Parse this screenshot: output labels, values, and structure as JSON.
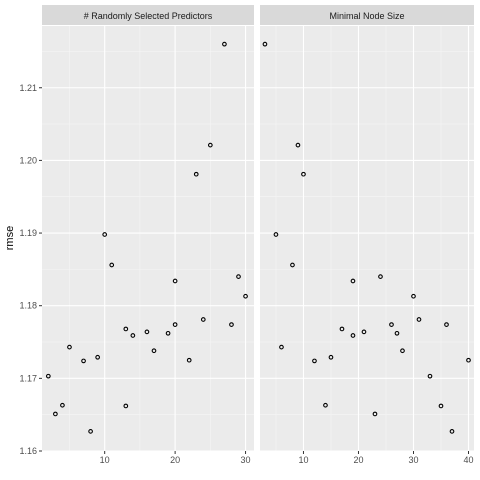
{
  "chart_data": {
    "type": "scatter",
    "ylabel": "rmse",
    "xlabel": "",
    "ylim": [
      1.16,
      1.2185
    ],
    "y_ticks": [
      1.16,
      1.17,
      1.18,
      1.19,
      1.2,
      1.21
    ],
    "y_tick_labels": [
      "1.16",
      "1.17",
      "1.18",
      "1.19",
      "1.20",
      "1.21"
    ],
    "grid": true,
    "colors": {
      "panel": "#ebebeb",
      "strip": "#d9d9d9",
      "grid_major": "#ffffff",
      "point_stroke": "#000000"
    },
    "panels": [
      {
        "strip_label": "# Randomly Selected Predictors",
        "xlim": [
          1.1,
          31.2
        ],
        "x_ticks": [
          10,
          20,
          30
        ],
        "x_tick_labels": [
          "10",
          "20",
          "30"
        ],
        "points": [
          {
            "x": 2,
            "y": 1.1703
          },
          {
            "x": 3,
            "y": 1.1651
          },
          {
            "x": 4,
            "y": 1.1663
          },
          {
            "x": 5,
            "y": 1.1743
          },
          {
            "x": 7,
            "y": 1.1724
          },
          {
            "x": 8,
            "y": 1.1627
          },
          {
            "x": 9,
            "y": 1.1729
          },
          {
            "x": 10,
            "y": 1.1898
          },
          {
            "x": 11,
            "y": 1.1856
          },
          {
            "x": 13,
            "y": 1.1768
          },
          {
            "x": 13,
            "y": 1.1662
          },
          {
            "x": 14,
            "y": 1.1759
          },
          {
            "x": 16,
            "y": 1.1764
          },
          {
            "x": 17,
            "y": 1.1738
          },
          {
            "x": 19,
            "y": 1.1762
          },
          {
            "x": 20,
            "y": 1.1834
          },
          {
            "x": 20,
            "y": 1.1774
          },
          {
            "x": 22,
            "y": 1.1725
          },
          {
            "x": 23,
            "y": 1.1981
          },
          {
            "x": 24,
            "y": 1.1781
          },
          {
            "x": 25,
            "y": 1.2021
          },
          {
            "x": 27,
            "y": 1.216
          },
          {
            "x": 28,
            "y": 1.1774
          },
          {
            "x": 29,
            "y": 1.184
          },
          {
            "x": 30,
            "y": 1.1813
          }
        ]
      },
      {
        "strip_label": "Minimal Node Size",
        "xlim": [
          2.1,
          41.0
        ],
        "x_ticks": [
          10,
          20,
          30,
          40
        ],
        "x_tick_labels": [
          "10",
          "20",
          "30",
          "40"
        ],
        "points": [
          {
            "x": 3,
            "y": 1.216
          },
          {
            "x": 5,
            "y": 1.1898
          },
          {
            "x": 6,
            "y": 1.1743
          },
          {
            "x": 8,
            "y": 1.1856
          },
          {
            "x": 9,
            "y": 1.2021
          },
          {
            "x": 10,
            "y": 1.1981
          },
          {
            "x": 12,
            "y": 1.1724
          },
          {
            "x": 14,
            "y": 1.1663
          },
          {
            "x": 15,
            "y": 1.1729
          },
          {
            "x": 17,
            "y": 1.1768
          },
          {
            "x": 19,
            "y": 1.1834
          },
          {
            "x": 19,
            "y": 1.1759
          },
          {
            "x": 21,
            "y": 1.1764
          },
          {
            "x": 23,
            "y": 1.1651
          },
          {
            "x": 24,
            "y": 1.184
          },
          {
            "x": 26,
            "y": 1.1774
          },
          {
            "x": 27,
            "y": 1.1762
          },
          {
            "x": 28,
            "y": 1.1738
          },
          {
            "x": 30,
            "y": 1.1813
          },
          {
            "x": 31,
            "y": 1.1781
          },
          {
            "x": 33,
            "y": 1.1703
          },
          {
            "x": 35,
            "y": 1.1662
          },
          {
            "x": 36,
            "y": 1.1774
          },
          {
            "x": 37,
            "y": 1.1627
          },
          {
            "x": 40,
            "y": 1.1725
          }
        ]
      }
    ]
  }
}
